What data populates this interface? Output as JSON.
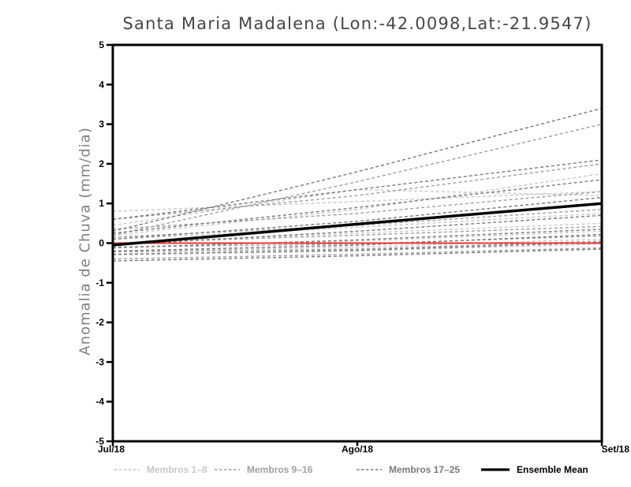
{
  "title": "Santa Maria Madalena (Lon:-42.0098,Lat:-21.9547)",
  "chart_data": {
    "type": "line",
    "title": "Santa Maria Madalena (Lon:-42.0098,Lat:-21.9547)",
    "xlabel": "",
    "ylabel": "Anomalia de Chuva (mm/dia)",
    "x_tick_labels": [
      "Jul/18",
      "Ago/18",
      "Set/18"
    ],
    "y_ticks": [
      5,
      4,
      3,
      2,
      1,
      0,
      -1,
      -2,
      -3,
      -4,
      -5
    ],
    "ylim": [
      -5,
      5
    ],
    "grid": false,
    "legend_position": "bottom",
    "frame_color": "#000000",
    "groups": [
      {
        "name": "Membros 1–8",
        "color": "#c8c8c8"
      },
      {
        "name": "Membros 9–16",
        "color": "#a0a0a0"
      },
      {
        "name": "Membros 17–25",
        "color": "#7a7a7a"
      }
    ],
    "members": [
      {
        "group": 0,
        "values": [
          0.8,
          1.05,
          1.3
        ]
      },
      {
        "group": 0,
        "values": [
          0.45,
          1.35,
          1.2
        ]
      },
      {
        "group": 0,
        "values": [
          0.2,
          0.85,
          1.75
        ]
      },
      {
        "group": 0,
        "values": [
          0.1,
          0.4,
          0.75
        ]
      },
      {
        "group": 0,
        "values": [
          0.0,
          0.25,
          0.5
        ]
      },
      {
        "group": 0,
        "values": [
          -0.1,
          0.05,
          0.3
        ]
      },
      {
        "group": 0,
        "values": [
          -0.2,
          -0.1,
          0.1
        ]
      },
      {
        "group": 0,
        "values": [
          -0.3,
          -0.2,
          -0.02
        ]
      },
      {
        "group": 1,
        "values": [
          0.6,
          1.2,
          2.0
        ]
      },
      {
        "group": 1,
        "values": [
          0.2,
          1.55,
          3.0
        ]
      },
      {
        "group": 1,
        "values": [
          0.35,
          0.75,
          1.3
        ]
      },
      {
        "group": 1,
        "values": [
          0.15,
          0.45,
          0.85
        ]
      },
      {
        "group": 1,
        "values": [
          0.0,
          0.2,
          0.42
        ]
      },
      {
        "group": 1,
        "values": [
          -0.1,
          -0.02,
          0.18
        ]
      },
      {
        "group": 1,
        "values": [
          -0.22,
          -0.15,
          0.05
        ]
      },
      {
        "group": 1,
        "values": [
          -0.4,
          -0.28,
          -0.12
        ]
      },
      {
        "group": 2,
        "values": [
          0.3,
          1.8,
          3.4
        ]
      },
      {
        "group": 2,
        "values": [
          0.6,
          1.35,
          2.1
        ]
      },
      {
        "group": 2,
        "values": [
          0.25,
          0.9,
          1.6
        ]
      },
      {
        "group": 2,
        "values": [
          0.1,
          0.55,
          1.15
        ]
      },
      {
        "group": 2,
        "values": [
          -0.05,
          0.3,
          0.7
        ]
      },
      {
        "group": 2,
        "values": [
          -0.12,
          0.08,
          0.35
        ]
      },
      {
        "group": 2,
        "values": [
          -0.2,
          -0.05,
          0.22
        ]
      },
      {
        "group": 2,
        "values": [
          -0.28,
          -0.18,
          0.02
        ]
      },
      {
        "group": 2,
        "values": [
          -0.45,
          -0.32,
          -0.15
        ]
      }
    ],
    "ensemble_mean": {
      "name": "Ensemble Mean",
      "color": "#000000",
      "values": [
        -0.05,
        0.48,
        1.0
      ]
    },
    "zero_line": {
      "color": "#e63a31",
      "value": 0
    }
  },
  "legend": {
    "items": [
      {
        "label": "Membros 1–8",
        "color": "#c8c8c8",
        "style": "dashed"
      },
      {
        "label": "Membros 9–16",
        "color": "#a0a0a0",
        "style": "dashed"
      },
      {
        "label": "Membros 17–25",
        "color": "#7a7a7a",
        "style": "dashed"
      },
      {
        "label": "Ensemble Mean",
        "color": "#000000",
        "style": "solid"
      }
    ]
  }
}
